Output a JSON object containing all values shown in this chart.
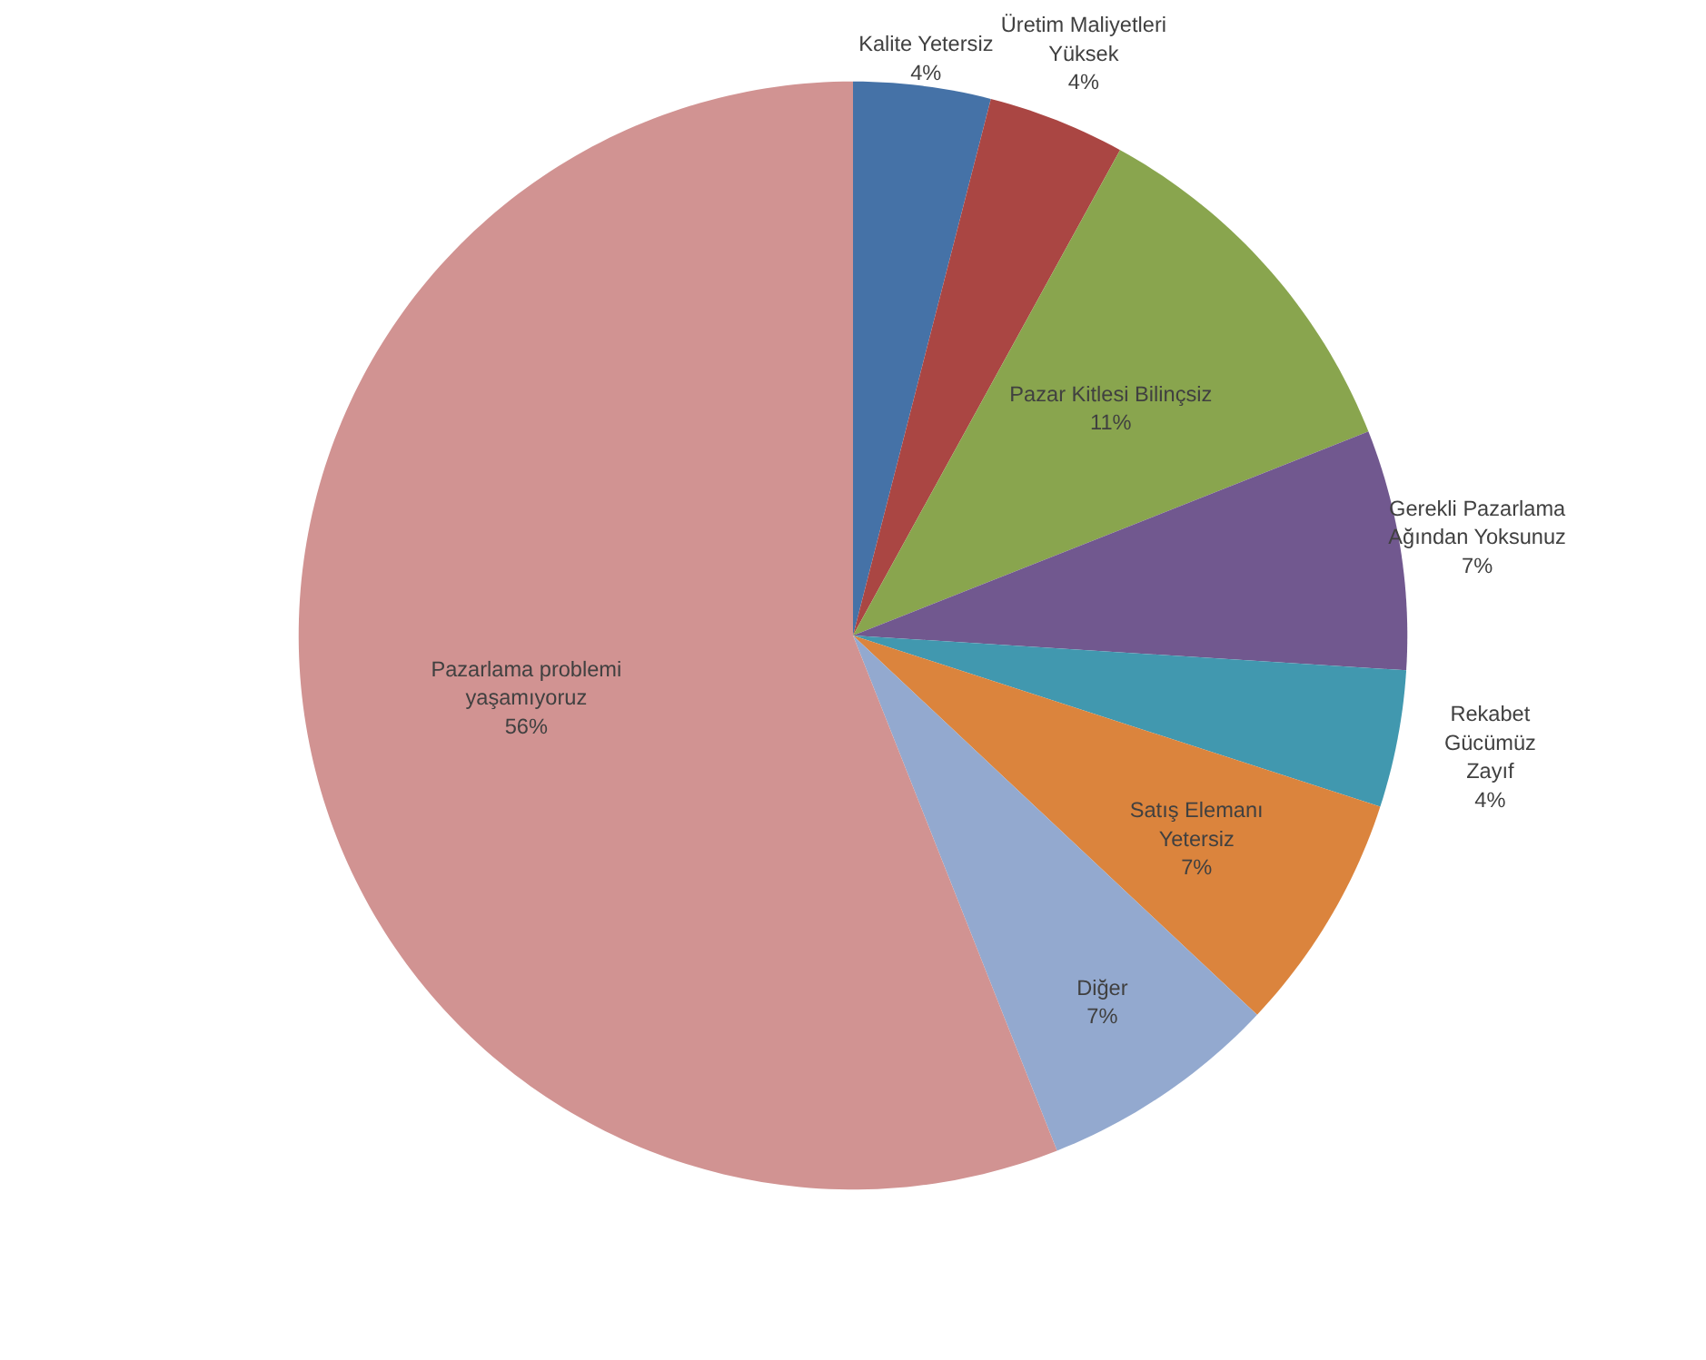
{
  "chart_data": {
    "type": "pie",
    "categories": [
      "Kalite Yetersiz",
      "Üretim Maliyetleri Yüksek",
      "Pazar Kitlesi Bilinçsiz",
      "Gerekli Pazarlama Ağından Yoksunuz",
      "Rekabet Gücümüz Zayıf",
      "Satış Elemanı Yetersiz",
      "Diğer",
      "Pazarlama problemi yaşamıyoruz"
    ],
    "values": [
      4,
      4,
      11,
      7,
      4,
      7,
      7,
      56
    ],
    "colors": [
      "#4572a7",
      "#aa4643",
      "#89a54e",
      "#71588f",
      "#4198af",
      "#db843d",
      "#93a9cf",
      "#d19392"
    ],
    "value_labels": [
      "4%",
      "4%",
      "11%",
      "7%",
      "4%",
      "7%",
      "7%",
      "56%"
    ]
  }
}
